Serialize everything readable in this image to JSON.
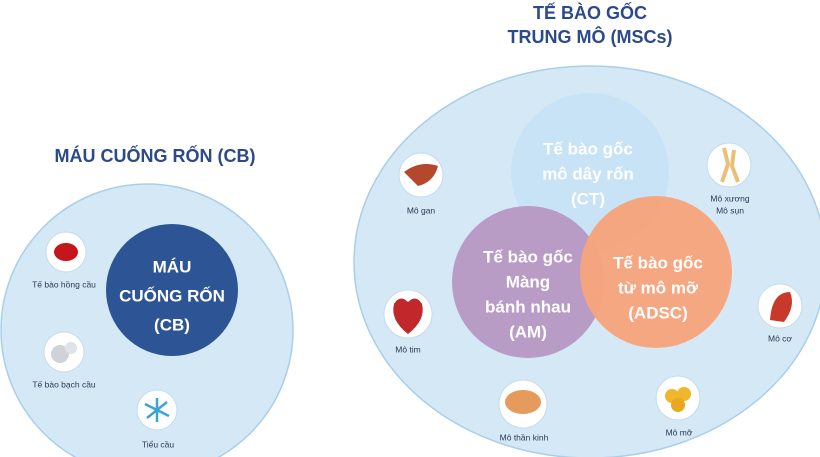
{
  "left": {
    "title": "MÁU CUỐNG RỐN (CB)",
    "center": [
      "MÁU",
      "CUỐNG RỐN",
      "(CB)"
    ],
    "items": [
      "Tế bào hồng cầu",
      "Tế bào bạch cầu",
      "Tiểu cầu"
    ]
  },
  "right": {
    "title": [
      "TẾ BÀO GỐC",
      "TRUNG MÔ (MSCs)"
    ],
    "ct": [
      "Tế bào gốc",
      "mô dây rốn",
      "(CT)"
    ],
    "am": [
      "Tế bào gốc",
      "Màng",
      "bánh nhau",
      "(AM)"
    ],
    "adsc": [
      "Tế bào gốc",
      "từ mô mỡ",
      "(ADSC)"
    ],
    "items": {
      "liver": "Mô gan",
      "bone": [
        "Mô xương",
        "Mô sụn"
      ],
      "heart": "Mô tim",
      "muscle": "Mô cơ",
      "nerve": "Mô thần kinh",
      "fat": "Mô mỡ"
    }
  }
}
